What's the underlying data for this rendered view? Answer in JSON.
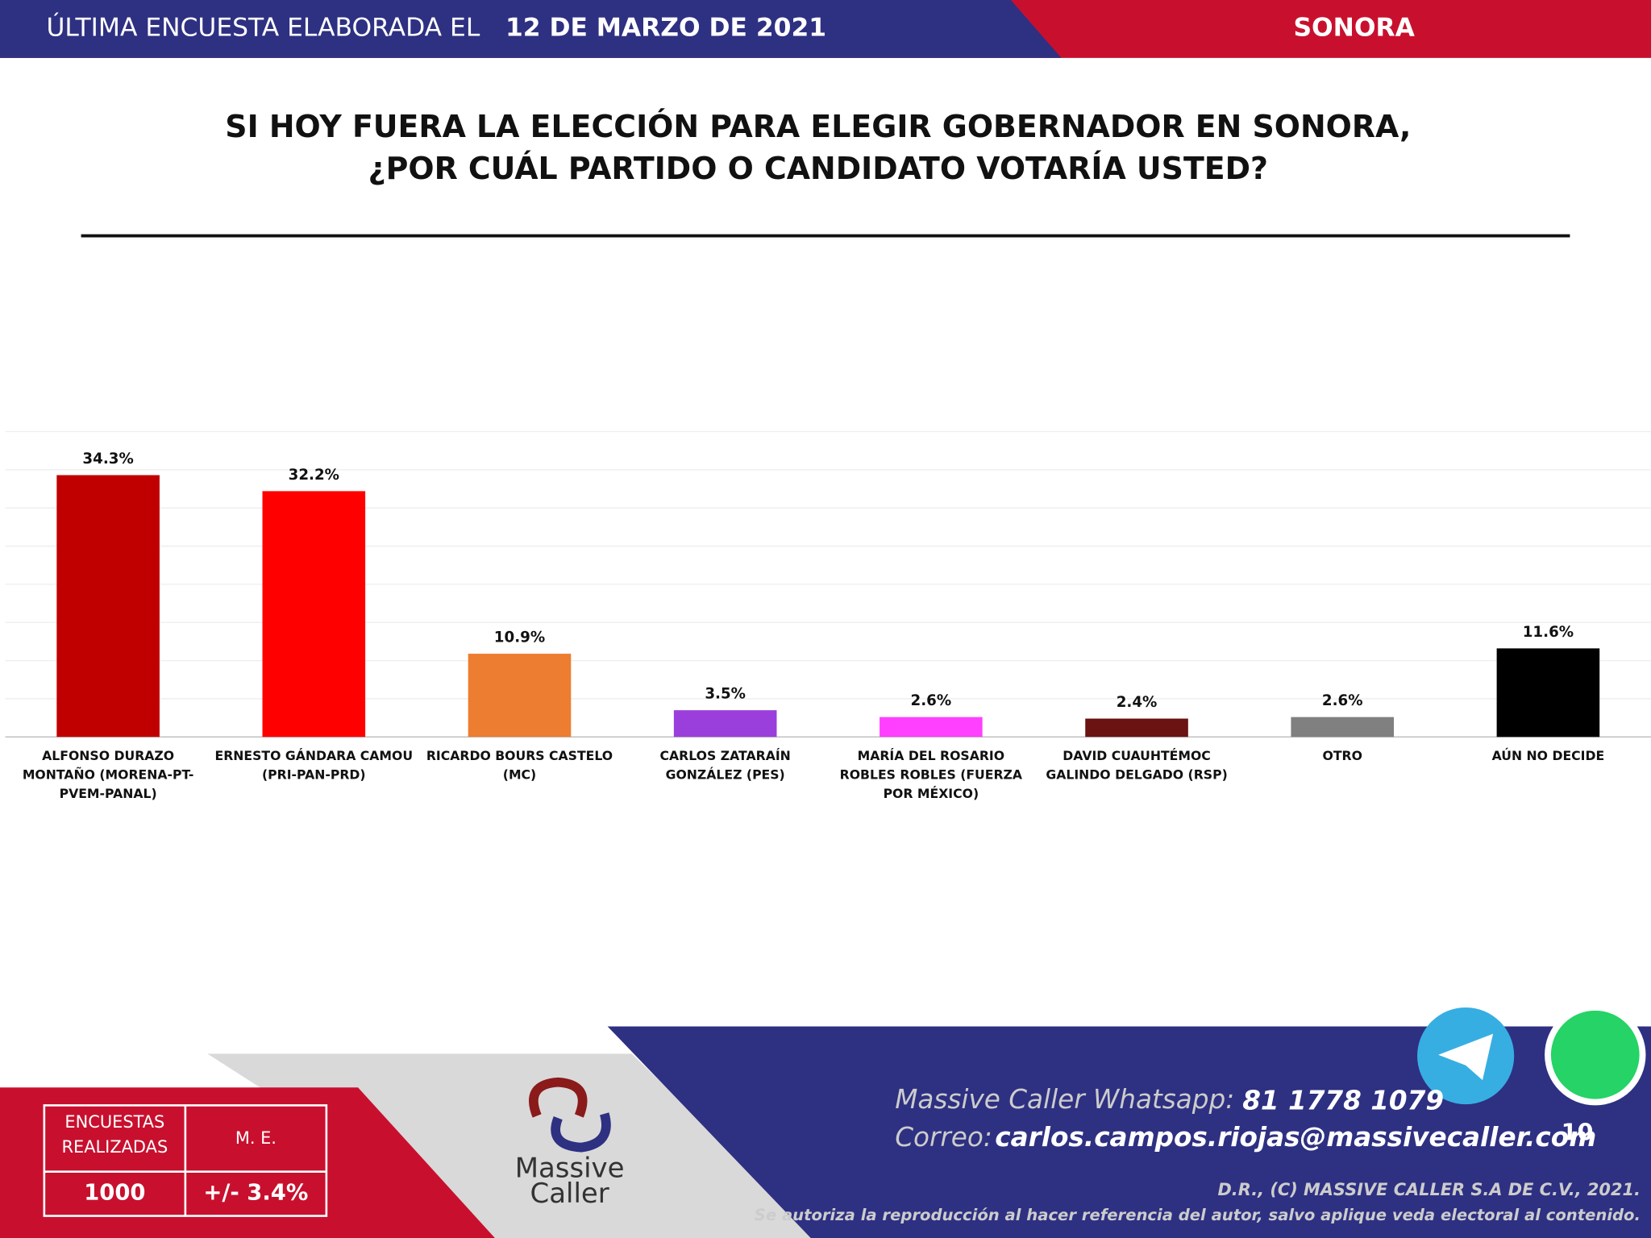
{
  "header": {
    "prefix": "ÚLTIMA ENCUESTA ELABORADA EL",
    "date": "12 DE MARZO DE 2021",
    "region": "SONORA"
  },
  "chart_data": {
    "type": "bar",
    "title": [
      "SI HOY FUERA LA ELECCIÓN PARA ELEGIR GOBERNADOR EN SONORA,",
      "¿POR CUÁL PARTIDO O CANDIDATO VOTARÍA USTED?"
    ],
    "categories": [
      "ALFONSO DURAZO MONTAÑO (MORENA-PT-PVEM-PANAL)",
      "ERNESTO GÁNDARA CAMOU (PRI-PAN-PRD)",
      "RICARDO BOURS CASTELO (MC)",
      "CARLOS ZATARAÍN GONZÁLEZ (PES)",
      "MARÍA DEL ROSARIO ROBLES ROBLES (FUERZA POR MÉXICO)",
      "DAVID CUAUHTÉMOC GALINDO DELGADO (RSP)",
      "OTRO",
      "AÚN NO DECIDE"
    ],
    "values": [
      34.3,
      32.2,
      10.9,
      3.5,
      2.6,
      2.4,
      2.6,
      11.6
    ],
    "value_labels": [
      "34.3%",
      "32.2%",
      "10.9%",
      "3.5%",
      "2.6%",
      "2.4%",
      "2.6%",
      "11.6%"
    ],
    "colors": [
      "#c00000",
      "#ff0000",
      "#ed7d31",
      "#9b3fdc",
      "#ff40ff",
      "#6b1212",
      "#808080",
      "#000000"
    ],
    "ylim": [
      0,
      40
    ],
    "yticks": [
      0,
      5,
      10,
      15,
      20,
      25,
      30,
      35,
      40
    ],
    "grid": true
  },
  "footer": {
    "surveys_label": "ENCUESTAS REALIZADAS",
    "surveys": "1000",
    "me_label": "M. E.",
    "me": "+/- 3.4%",
    "logo": [
      "Massive",
      "Caller"
    ],
    "whatsapp_label": "Massive Caller Whatsapp:",
    "whatsapp": "81 1778 1079",
    "email_label": "Correo:",
    "email": "carlos.campos.riojas@massivecaller.com",
    "page": "10",
    "copyright": "D.R., (C) MASSIVE CALLER S.A DE C.V., 2021.",
    "notice": "Se autoriza la reproducción al hacer referencia del autor, salvo aplique veda electoral al contenido."
  }
}
